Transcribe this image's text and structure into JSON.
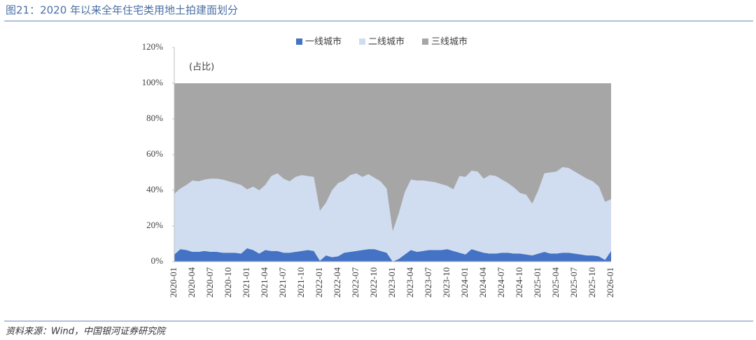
{
  "chart_data": {
    "type": "stacked_area",
    "title": "图21：2020 年以来全年住宅类用地土拍建面划分",
    "annotation": "(占比)",
    "source": "资料来源：Wind，中国银河证券研究院",
    "categories": [
      "2020-01",
      null,
      null,
      "2020-04",
      null,
      null,
      "2020-07",
      null,
      null,
      "2020-10",
      null,
      null,
      "2021-01",
      null,
      null,
      "2021-04",
      null,
      null,
      "2021-07",
      null,
      null,
      "2021-10",
      null,
      null,
      "2022-01",
      null,
      null,
      "2022-04",
      null,
      null,
      "2022-07",
      null,
      null,
      "2022-10",
      null,
      null,
      "2023-01",
      null,
      null,
      "2023-04",
      null,
      null,
      "2023-07",
      null,
      null,
      "2023-10",
      null,
      null,
      "2024-01",
      null,
      null,
      "2024-04",
      null,
      null,
      "2024-07",
      null,
      null,
      "2024-10",
      null,
      null,
      "2025-01",
      null,
      null,
      "2025-04",
      null,
      null,
      "2025-07",
      null,
      null,
      "2025-10",
      null,
      null,
      "2026-01"
    ],
    "series": [
      {
        "name": "一线城市",
        "color": "#4472c4",
        "values": [
          4,
          7,
          6.5,
          5.5,
          5.5,
          6,
          5.5,
          5.5,
          5,
          5,
          5,
          4.5,
          7.5,
          6.5,
          4.5,
          6.5,
          6,
          6,
          5,
          5,
          5.5,
          6,
          6.5,
          6,
          0.5,
          3.5,
          2.5,
          3,
          5,
          5.5,
          6,
          6.5,
          7,
          7,
          6,
          5,
          0,
          1.5,
          4,
          6.5,
          5.5,
          6,
          6.5,
          6.5,
          6.5,
          7,
          6,
          5,
          4,
          7,
          6,
          5,
          4.5,
          4.5,
          5,
          5,
          4.5,
          4.5,
          4,
          3.5,
          4.5,
          5.5,
          4.5,
          4.5,
          5,
          5,
          4.5,
          4,
          3.5,
          3.5,
          3,
          1,
          6
        ]
      },
      {
        "name": "二线城市",
        "color": "#d0dcf0",
        "values": [
          34,
          34,
          36.5,
          40,
          39.5,
          40,
          41,
          41,
          41,
          40,
          39,
          38.5,
          33,
          35.5,
          35.5,
          36.5,
          42,
          43.5,
          41.5,
          40,
          42,
          42.5,
          41.5,
          41.5,
          28,
          29.5,
          37.5,
          41,
          40.5,
          43,
          43.5,
          41,
          42,
          40,
          39,
          36,
          17,
          25.5,
          35,
          39.5,
          40,
          39.5,
          38.5,
          38,
          37,
          35.5,
          34.5,
          43,
          43.5,
          44,
          44.5,
          41.5,
          44,
          43.5,
          41,
          39,
          37,
          34,
          33.5,
          29,
          35.5,
          44,
          45.5,
          46,
          48,
          47.5,
          46,
          44.5,
          43,
          41.5,
          39,
          32.5,
          29
        ]
      },
      {
        "name": "三线城市",
        "color": "#a6a6a6",
        "values": [
          62,
          59,
          57,
          54.5,
          55,
          54,
          53.5,
          53.5,
          54,
          55,
          56,
          57,
          59.5,
          58,
          60,
          57,
          52,
          50.5,
          53.5,
          55,
          52.5,
          51.5,
          52,
          52.5,
          71.5,
          67,
          60,
          56,
          54.5,
          51.5,
          50.5,
          52.5,
          51,
          53,
          55,
          59,
          83,
          73,
          61,
          54,
          54.5,
          54.5,
          55,
          55.5,
          56.5,
          57.5,
          59.5,
          52,
          52.5,
          49,
          49.5,
          53.5,
          51.5,
          52,
          54,
          56,
          58.5,
          61.5,
          62.5,
          67.5,
          60,
          50.5,
          50,
          49.5,
          47,
          47.5,
          49.5,
          51.5,
          53.5,
          55,
          58,
          66.5,
          65
        ]
      }
    ],
    "ylim": [
      0,
      120
    ],
    "yticks": [
      {
        "value": 0,
        "label": "0%"
      },
      {
        "value": 20,
        "label": "20%"
      },
      {
        "value": 40,
        "label": "40%"
      },
      {
        "value": 60,
        "label": "60%"
      },
      {
        "value": 80,
        "label": "80%"
      },
      {
        "value": 100,
        "label": "100%"
      },
      {
        "value": 120,
        "label": "120%"
      }
    ],
    "legend": "top"
  }
}
